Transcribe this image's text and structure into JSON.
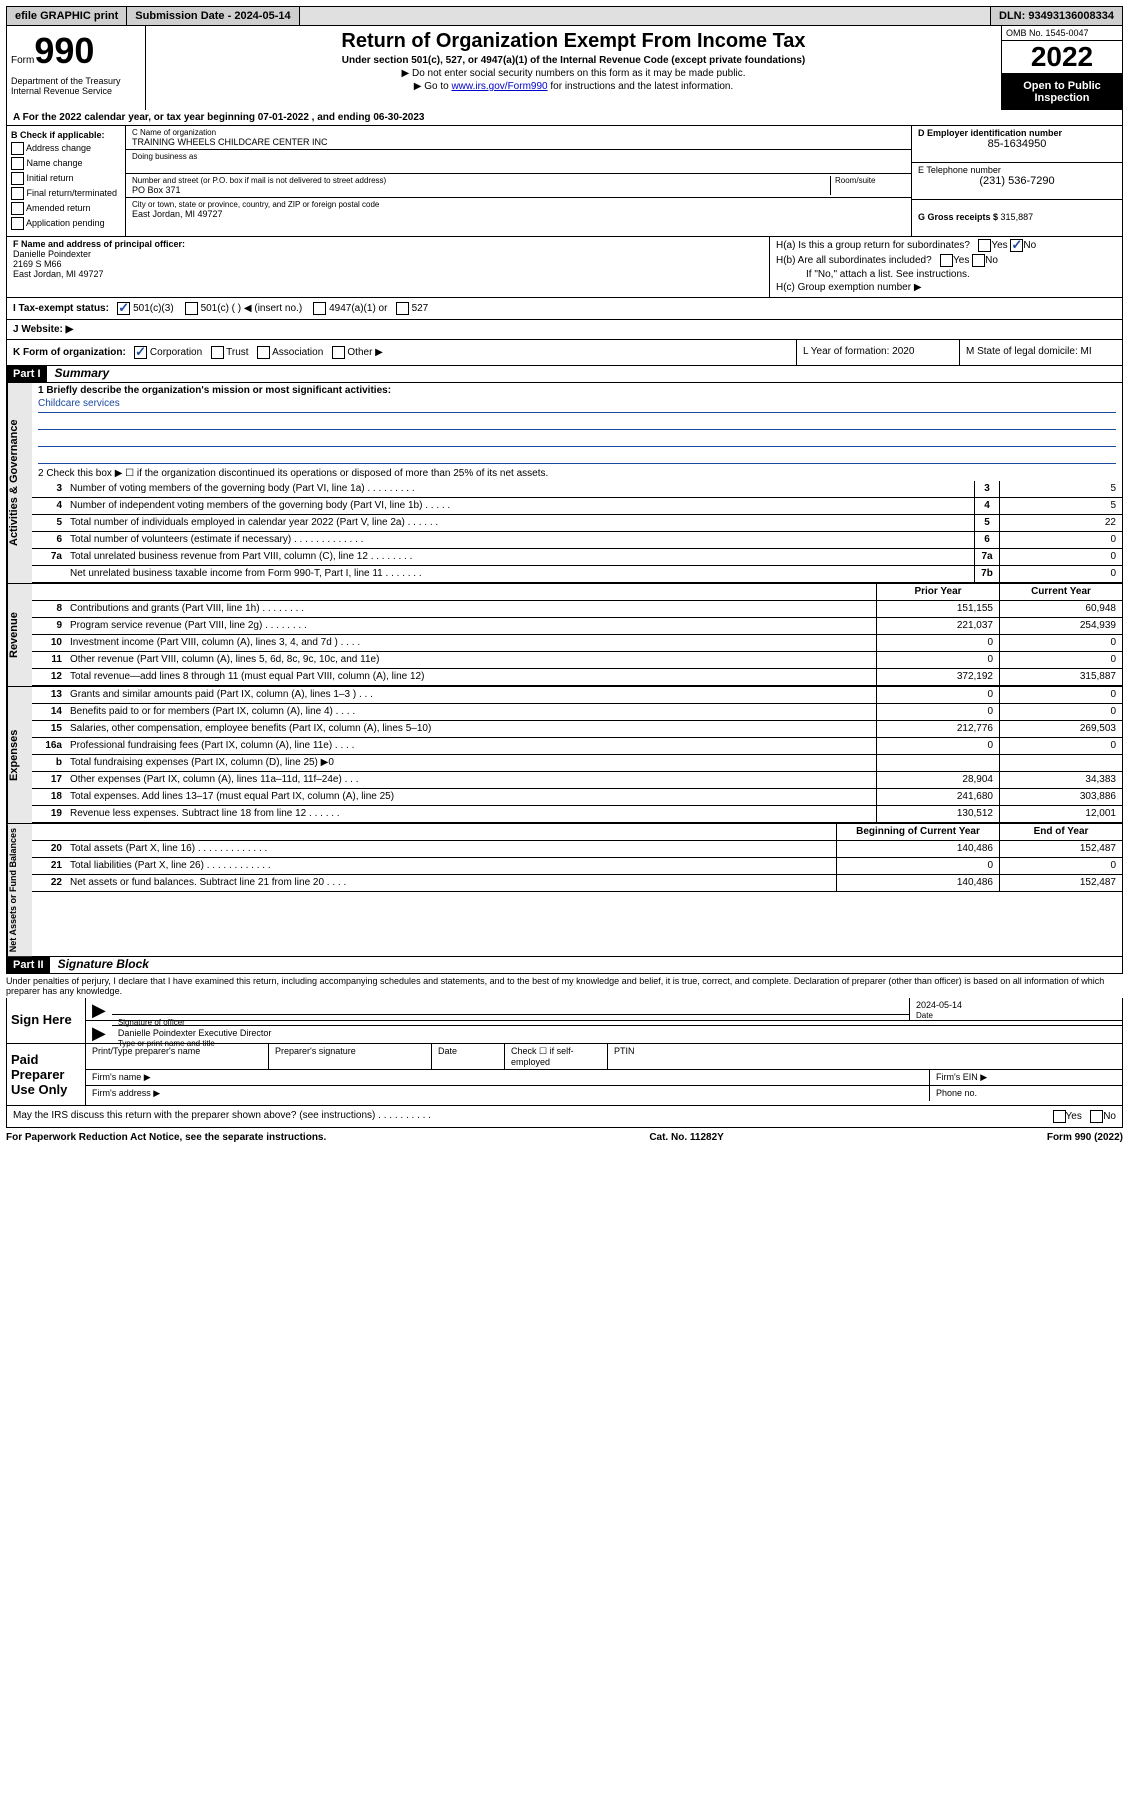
{
  "topbar": {
    "efile": "efile GRAPHIC print",
    "subdate_label": "Submission Date - ",
    "subdate": "2024-05-14",
    "dln": "DLN: 93493136008334"
  },
  "header": {
    "form_label": "Form",
    "form_no": "990",
    "dept": "Department of the Treasury\nInternal Revenue Service",
    "title": "Return of Organization Exempt From Income Tax",
    "sub1": "Under section 501(c), 527, or 4947(a)(1) of the Internal Revenue Code (except private foundations)",
    "sub2": "▶ Do not enter social security numbers on this form as it may be made public.",
    "sub3_a": "▶ Go to ",
    "sub3_link": "www.irs.gov/Form990",
    "sub3_b": " for instructions and the latest information.",
    "omb": "OMB No. 1545-0047",
    "year": "2022",
    "open": "Open to Public Inspection"
  },
  "row_a": "A For the 2022 calendar year, or tax year beginning 07-01-2022    , and ending 06-30-2023",
  "box_b": {
    "hdr": "B Check if applicable:",
    "items": [
      "Address change",
      "Name change",
      "Initial return",
      "Final return/terminated",
      "Amended return",
      "Application pending"
    ]
  },
  "box_c": {
    "name_lbl": "C Name of organization",
    "name": "TRAINING WHEELS CHILDCARE CENTER INC",
    "dba_lbl": "Doing business as",
    "street_lbl": "Number and street (or P.O. box if mail is not delivered to street address)",
    "room_lbl": "Room/suite",
    "street": "PO Box 371",
    "city_lbl": "City or town, state or province, country, and ZIP or foreign postal code",
    "city": "East Jordan, MI  49727"
  },
  "box_d": {
    "ein_lbl": "D Employer identification number",
    "ein": "85-1634950",
    "tel_lbl": "E Telephone number",
    "tel": "(231) 536-7290",
    "gross_lbl": "G Gross receipts $ ",
    "gross": "315,887"
  },
  "box_f": {
    "lbl": "F Name and address of principal officer:",
    "name": "Danielle Poindexter",
    "addr1": "2169 S M66",
    "addr2": "East Jordan, MI  49727"
  },
  "box_h": {
    "ha": "H(a)  Is this a group return for subordinates?",
    "ha_no": "No",
    "hb": "H(b)  Are all subordinates included?",
    "hb_note": "If \"No,\" attach a list. See instructions.",
    "hc": "H(c)  Group exemption number ▶"
  },
  "row_i": {
    "lbl": "I    Tax-exempt status:",
    "opts": [
      "501(c)(3)",
      "501(c) (  ) ◀ (insert no.)",
      "4947(a)(1) or",
      "527"
    ]
  },
  "row_j": "J   Website: ▶",
  "row_k": {
    "lbl": "K Form of organization:",
    "opts": [
      "Corporation",
      "Trust",
      "Association",
      "Other ▶"
    ],
    "l": "L Year of formation: 2020",
    "m": "M State of legal domicile: MI"
  },
  "parts": {
    "p1": "Part I",
    "p1_title": "Summary",
    "p2": "Part II",
    "p2_title": "Signature Block"
  },
  "mission": {
    "lbl": "1   Briefly describe the organization's mission or most significant activities:",
    "text": "Childcare services"
  },
  "summary_discontinued": "2   Check this box ▶ ☐  if the organization discontinued its operations or disposed of more than 25% of its net assets.",
  "gov_lines": [
    {
      "n": "3",
      "d": "Number of voting members of the governing body (Part VI, line 1a)   .    .    .    .    .    .    .    .    .",
      "b": "3",
      "v": "5"
    },
    {
      "n": "4",
      "d": "Number of independent voting members of the governing body (Part VI, line 1b)   .    .    .    .    .",
      "b": "4",
      "v": "5"
    },
    {
      "n": "5",
      "d": "Total number of individuals employed in calendar year 2022 (Part V, line 2a)    .    .    .    .    .    .",
      "b": "5",
      "v": "22"
    },
    {
      "n": "6",
      "d": "Total number of volunteers (estimate if necessary)   .    .    .    .    .    .    .    .    .    .    .    .    .",
      "b": "6",
      "v": "0"
    },
    {
      "n": "7a",
      "d": "Total unrelated business revenue from Part VIII, column (C), line 12   .    .    .    .    .    .    .    .",
      "b": "7a",
      "v": "0"
    },
    {
      "n": "",
      "d": "Net unrelated business taxable income from Form 990-T, Part I, line 11    .    .    .    .    .    .    .",
      "b": "7b",
      "v": "0"
    }
  ],
  "col_headers": {
    "py": "Prior Year",
    "cy": "Current Year",
    "boy": "Beginning of Current Year",
    "eoy": "End of Year"
  },
  "rev_lines": [
    {
      "n": "8",
      "d": "Contributions and grants (Part VIII, line 1h)    .    .    .    .    .    .    .    .",
      "py": "151,155",
      "cy": "60,948"
    },
    {
      "n": "9",
      "d": "Program service revenue (Part VIII, line 2g)    .    .    .    .    .    .    .    .",
      "py": "221,037",
      "cy": "254,939"
    },
    {
      "n": "10",
      "d": "Investment income (Part VIII, column (A), lines 3, 4, and 7d )   .    .    .    .",
      "py": "0",
      "cy": "0"
    },
    {
      "n": "11",
      "d": "Other revenue (Part VIII, column (A), lines 5, 6d, 8c, 9c, 10c, and 11e)",
      "py": "0",
      "cy": "0"
    },
    {
      "n": "12",
      "d": "Total revenue—add lines 8 through 11 (must equal Part VIII, column (A), line 12)",
      "py": "372,192",
      "cy": "315,887"
    }
  ],
  "exp_lines": [
    {
      "n": "13",
      "d": "Grants and similar amounts paid (Part IX, column (A), lines 1–3 )   .    .    .",
      "py": "0",
      "cy": "0"
    },
    {
      "n": "14",
      "d": "Benefits paid to or for members (Part IX, column (A), line 4)   .    .    .    .",
      "py": "0",
      "cy": "0"
    },
    {
      "n": "15",
      "d": "Salaries, other compensation, employee benefits (Part IX, column (A), lines 5–10)",
      "py": "212,776",
      "cy": "269,503"
    },
    {
      "n": "16a",
      "d": "Professional fundraising fees (Part IX, column (A), line 11e)   .    .    .    .",
      "py": "0",
      "cy": "0"
    },
    {
      "n": "b",
      "d": "Total fundraising expenses (Part IX, column (D), line 25) ▶0",
      "py": "",
      "cy": ""
    },
    {
      "n": "17",
      "d": "Other expenses (Part IX, column (A), lines 11a–11d, 11f–24e)   .    .    .",
      "py": "28,904",
      "cy": "34,383"
    },
    {
      "n": "18",
      "d": "Total expenses. Add lines 13–17 (must equal Part IX, column (A), line 25)",
      "py": "241,680",
      "cy": "303,886"
    },
    {
      "n": "19",
      "d": "Revenue less expenses. Subtract line 18 from line 12   .    .    .    .    .    .",
      "py": "130,512",
      "cy": "12,001"
    }
  ],
  "na_lines": [
    {
      "n": "20",
      "d": "Total assets (Part X, line 16)   .    .    .    .    .    .    .    .    .    .    .    .    .",
      "py": "140,486",
      "cy": "152,487"
    },
    {
      "n": "21",
      "d": "Total liabilities (Part X, line 26)    .    .    .    .    .    .    .    .    .    .    .    .",
      "py": "0",
      "cy": "0"
    },
    {
      "n": "22",
      "d": "Net assets or fund balances. Subtract line 21 from line 20    .    .    .    .",
      "py": "140,486",
      "cy": "152,487"
    }
  ],
  "tabs": {
    "gov": "Activities & Governance",
    "rev": "Revenue",
    "exp": "Expenses",
    "na": "Net Assets or Fund Balances"
  },
  "penalties": "Under penalties of perjury, I declare that I have examined this return, including accompanying schedules and statements, and to the best of my knowledge and belief, it is true, correct, and complete. Declaration of preparer (other than officer) is based on all information of which preparer has any knowledge.",
  "sign": {
    "here": "Sign Here",
    "sig_lbl": "Signature of officer",
    "date_lbl": "Date",
    "date": "2024-05-14",
    "name": "Danielle Poindexter  Executive Director",
    "name_lbl": "Type or print name and title"
  },
  "prep": {
    "lbl": "Paid Preparer Use Only",
    "r1": [
      "Print/Type preparer's name",
      "Preparer's signature",
      "Date",
      "Check ☐ if self-employed",
      "PTIN"
    ],
    "r2a": "Firm's name   ▶",
    "r2b": "Firm's EIN ▶",
    "r3a": "Firm's address ▶",
    "r3b": "Phone no."
  },
  "discuss": "May the IRS discuss this return with the preparer shown above? (see instructions)    .    .    .    .    .    .    .    .    .    .",
  "discuss_yn": {
    "yes": "Yes",
    "no": "No"
  },
  "footer": {
    "l": "For Paperwork Reduction Act Notice, see the separate instructions.",
    "m": "Cat. No. 11282Y",
    "r": "Form 990 (2022)"
  }
}
